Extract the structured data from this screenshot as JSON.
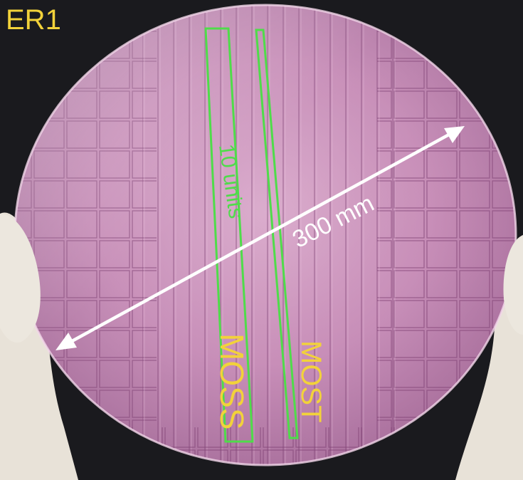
{
  "labels": {
    "title": "ER1",
    "moss": "MOSS",
    "most": "MOST",
    "units": "10 units",
    "dimension": "300 mm"
  },
  "colors": {
    "background": "#1a1a1e",
    "wafer_pink": "#c68bb6",
    "label_yellow": "#f2d23a",
    "outline_green": "#4fdc4a",
    "arrow_white": "#ffffff",
    "glove": "#e8e2d8"
  }
}
